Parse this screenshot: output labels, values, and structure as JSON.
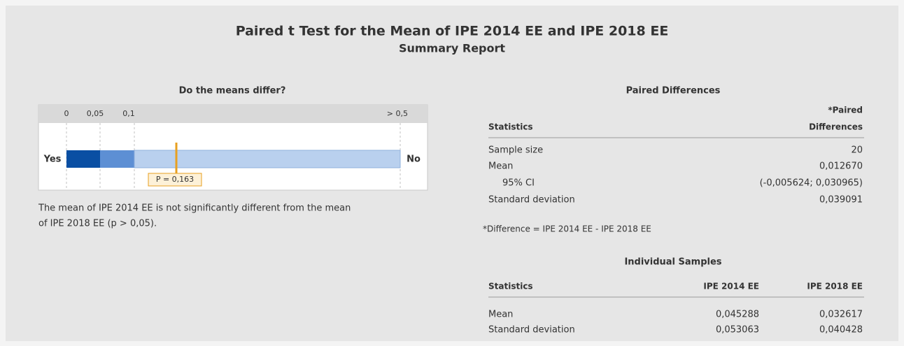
{
  "header": {
    "title": "Paired t Test for the Mean of IPE 2014 EE and IPE 2018 EE",
    "subtitle": "Summary Report"
  },
  "test_panel": {
    "title": "Do the means differ?",
    "scale_labels": [
      "0",
      "0,05",
      "0,1",
      "> 0,5"
    ],
    "left_label": "Yes",
    "right_label": "No",
    "p_label": "P = 0,163",
    "conclusion": [
      "The mean of IPE 2014 EE is not significantly different from the mean",
      "of IPE 2018 EE (p > 0,05)."
    ]
  },
  "paired_differences": {
    "title": "Paired Differences",
    "columns": [
      "Statistics",
      [
        "*Paired",
        "Differences"
      ]
    ],
    "rows": [
      [
        "Sample size",
        "20"
      ],
      [
        "Mean",
        "0,012670"
      ],
      [
        "95% CI",
        "(-0,005624; 0,030965)"
      ],
      [
        "Standard deviation",
        "0,039091"
      ]
    ],
    "footnote": "*Difference = IPE 2014 EE - IPE 2018 EE"
  },
  "individual_samples": {
    "title": "Individual Samples",
    "columns": [
      "Statistics",
      "IPE 2014 EE",
      "IPE 2018 EE"
    ],
    "rows": [
      [
        "Mean",
        "0,045288",
        "0,032617"
      ],
      [
        "Standard deviation",
        "0,053063",
        "0,040428"
      ]
    ]
  }
}
